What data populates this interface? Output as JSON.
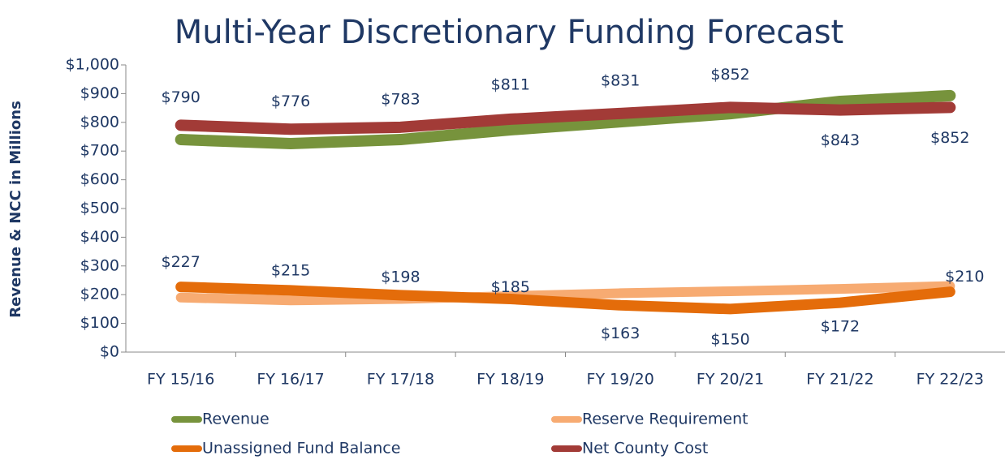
{
  "chart_data": {
    "type": "line",
    "title": "Multi-Year Discretionary Funding Forecast",
    "y_label": "Revenue & NCC in Millions",
    "categories": [
      "FY 15/16",
      "FY 16/17",
      "FY 17/18",
      "FY 18/19",
      "FY 19/20",
      "FY 20/21",
      "FY 21/22",
      "FY 22/23"
    ],
    "ylim": [
      0,
      1000
    ],
    "yticks": [
      {
        "value": 0,
        "label": "$0"
      },
      {
        "value": 100,
        "label": "$100"
      },
      {
        "value": 200,
        "label": "$200"
      },
      {
        "value": 300,
        "label": "$300"
      },
      {
        "value": 400,
        "label": "$400"
      },
      {
        "value": 500,
        "label": "$500"
      },
      {
        "value": 600,
        "label": "$600"
      },
      {
        "value": 700,
        "label": "$700"
      },
      {
        "value": 800,
        "label": "$800"
      },
      {
        "value": 900,
        "label": "$900"
      },
      {
        "value": 1000,
        "label": "$1,000"
      }
    ],
    "legend": "bottom",
    "series": [
      {
        "name": "Revenue",
        "color": "#77933c",
        "values": [
          740,
          726,
          740,
          774,
          802,
          830,
          873,
          893
        ]
      },
      {
        "name": "Reserve Requirement",
        "color": "#f7ab72",
        "values": [
          190,
          180,
          185,
          195,
          205,
          212,
          220,
          230
        ]
      },
      {
        "name": "Unassigned Fund Balance",
        "color": "#e46c0a",
        "values": [
          227,
          215,
          198,
          185,
          163,
          150,
          172,
          210
        ],
        "value_labels": [
          "$227",
          "$215",
          "$198",
          "$185",
          "$163",
          "$150",
          "$172",
          "$210"
        ]
      },
      {
        "name": "Net County Cost",
        "color": "#a23b37",
        "values": [
          790,
          776,
          783,
          811,
          831,
          852,
          843,
          852
        ],
        "value_labels": [
          "$790",
          "$776",
          "$783",
          "$811",
          "$831",
          "$852",
          "$843",
          "$852"
        ]
      }
    ]
  }
}
